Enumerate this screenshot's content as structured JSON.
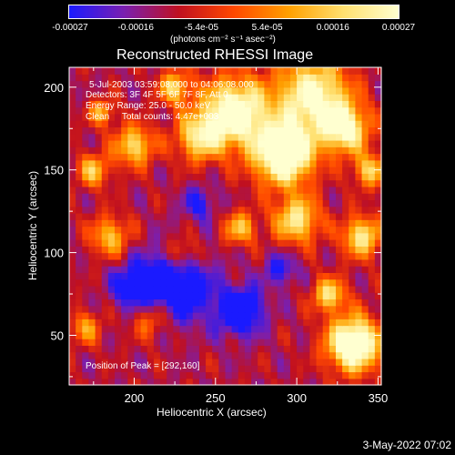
{
  "colorbar": {
    "ticks": [
      "-0.00027",
      "-0.00016",
      "-5.4e-05",
      "5.4e-05",
      "0.00016",
      "0.00027"
    ],
    "unit": "(photons cm⁻² s⁻¹ asec⁻²)",
    "range": [
      -0.00027,
      0.00027
    ],
    "colors": [
      "#1a1aff",
      "#7a1fb0",
      "#c01020",
      "#ff4800",
      "#ffa000",
      "#ffe070",
      "#ffffd0"
    ]
  },
  "chart_data": {
    "type": "heatmap",
    "title": "Reconstructed RHESSI Image",
    "xlabel": "Heliocentric X (arcsec)",
    "ylabel": "Heliocentric Y (arcsec)",
    "xlim": [
      160,
      352
    ],
    "ylim": [
      20,
      212
    ],
    "xticks": [
      200,
      250,
      300,
      350
    ],
    "yticks": [
      50,
      100,
      150,
      200
    ],
    "annotations": [
      "5-Jul-2003 03:59:08.000 to 04:06:08.000",
      "Detectors: 3F 4F 5F 6F 7F 8F, Att 0",
      "Energy Range: 25.0 - 50.0 keV",
      "Clean     Total counts: 4.47e+003",
      "Position of Peak = [292,160]"
    ],
    "peak": [
      292,
      160
    ],
    "footer_date": "3-May-2022 07:02"
  }
}
